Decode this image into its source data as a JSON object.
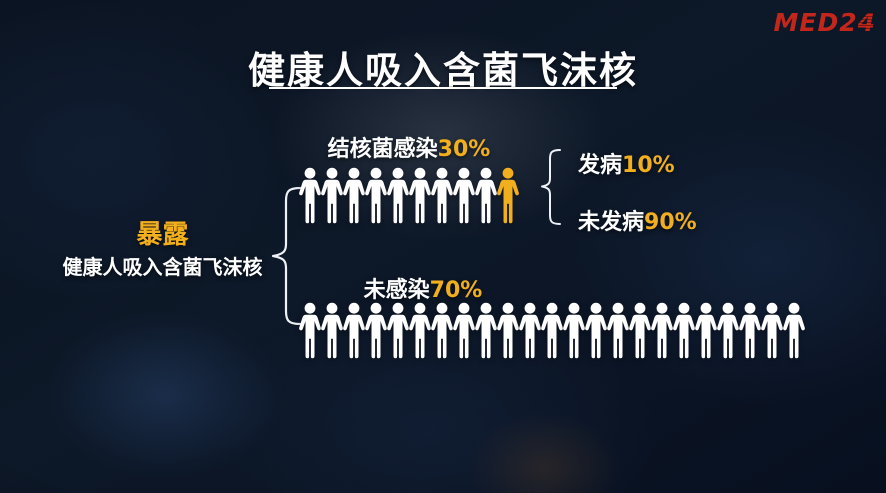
{
  "title": {
    "text": "健康人吸入含菌飞沫核"
  },
  "logo": {
    "prefix": "MED2",
    "suffix": "4"
  },
  "exposure": {
    "headline": "暴露",
    "subline": "健康人吸入含菌飞沫核"
  },
  "infected_row": {
    "label": "结核菌感染",
    "pct": "30%",
    "people_white": 9,
    "people_highlight": 1
  },
  "outcome": {
    "onset_label": "发病",
    "onset_pct": "10%",
    "no_onset_label": "未发病",
    "no_onset_pct": "90%"
  },
  "uninfected_row": {
    "label": "未感染",
    "pct": "70%",
    "people_white": 23,
    "people_highlight": 0
  },
  "colors": {
    "accent": "#F2AF1D",
    "logo_red": "#C3261B",
    "white": "#FFFFFF"
  },
  "chart_data": {
    "type": "pictogram",
    "title": "健康人吸入含菌飞沫核",
    "root": {
      "label": "暴露",
      "sublabel": "健康人吸入含菌飞沫核"
    },
    "branches": [
      {
        "label": "结核菌感染",
        "value_pct": 30,
        "icon_count": 10,
        "highlighted_icons": 1,
        "icon_color": "#FFFFFF",
        "highlight_color": "#F2AF1D",
        "children": [
          {
            "label": "发病",
            "value_pct": 10
          },
          {
            "label": "未发病",
            "value_pct": 90
          }
        ]
      },
      {
        "label": "未感染",
        "value_pct": 70,
        "icon_count": 23,
        "highlighted_icons": 0,
        "icon_color": "#FFFFFF",
        "children": []
      }
    ],
    "legend_position": "none",
    "grid": false
  }
}
